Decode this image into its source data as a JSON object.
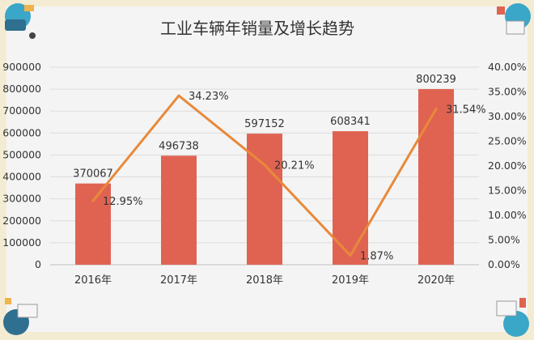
{
  "chart_data": {
    "type": "bar",
    "title": "工业车辆年销量及增长趋势",
    "categories": [
      "2016年",
      "2017年",
      "2018年",
      "2019年",
      "2020年"
    ],
    "series": [
      {
        "type": "bar",
        "values": [
          370067,
          496738,
          597152,
          608341,
          800239
        ],
        "color": "#e06352"
      },
      {
        "type": "line",
        "values": [
          12.95,
          34.23,
          20.21,
          1.87,
          31.54
        ],
        "labels": [
          "12.95%",
          "34.23%",
          "20.21%",
          "1.87%",
          "31.54%"
        ],
        "color": "#e8893a"
      }
    ],
    "y_left": {
      "min": 0,
      "max": 900000,
      "step": 100000,
      "ticks": [
        "0",
        "100000",
        "200000",
        "300000",
        "400000",
        "500000",
        "600000",
        "700000",
        "800000",
        "900000"
      ]
    },
    "y_right": {
      "min": 0,
      "max": 40,
      "step": 5,
      "ticks": [
        "0.00%",
        "5.00%",
        "10.00%",
        "15.00%",
        "20.00%",
        "25.00%",
        "30.00%",
        "35.00%",
        "40.00%"
      ]
    },
    "grid": true,
    "legend": "none"
  },
  "colors": {
    "background_border": "#f3ecd3",
    "panel": "#f4f4f4",
    "grid": "#dcdcdc",
    "text": "#333333"
  }
}
